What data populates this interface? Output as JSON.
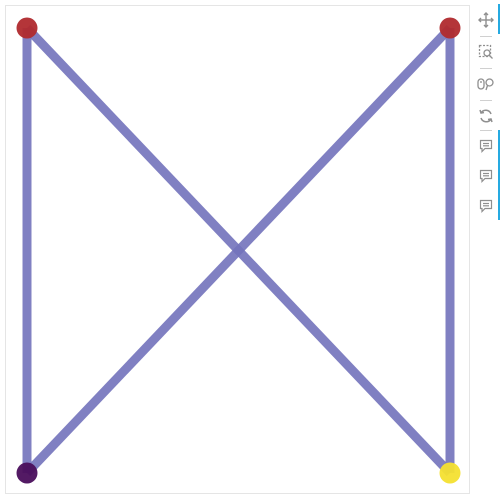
{
  "graph": {
    "edge_color": "#7272bb",
    "nodes": [
      {
        "id": "top-left",
        "color": "#b02a2e"
      },
      {
        "id": "top-right",
        "color": "#b02a2e"
      },
      {
        "id": "bottom-left",
        "color": "#4a0e5c"
      },
      {
        "id": "bottom-right",
        "color": "#f4e030"
      }
    ],
    "edges": [
      {
        "from": "top-left",
        "to": "bottom-left"
      },
      {
        "from": "top-left",
        "to": "bottom-right"
      },
      {
        "from": "top-right",
        "to": "bottom-left"
      },
      {
        "from": "top-right",
        "to": "bottom-right"
      }
    ]
  },
  "toolbar": {
    "icon_color": "#8f8f8f",
    "accent_color": "#26aae1",
    "tools": [
      "pan-icon",
      "box-zoom-icon",
      "wheel-zoom-icon",
      "reset-icon",
      "hover-icon",
      "hover-icon",
      "hover-icon"
    ]
  }
}
